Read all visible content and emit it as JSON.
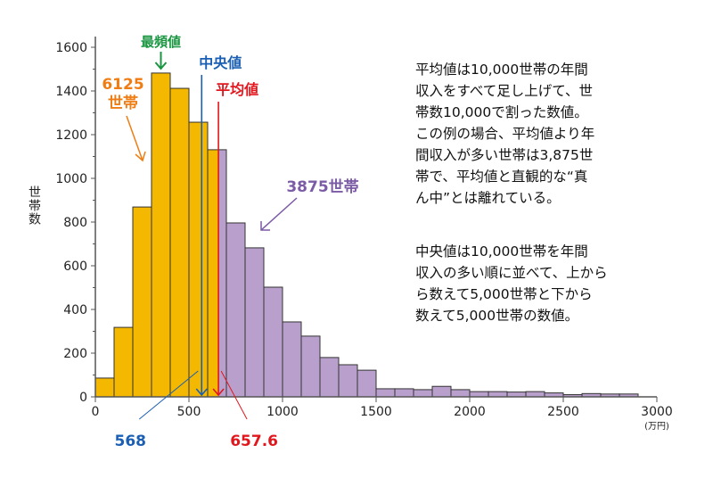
{
  "chart_data": {
    "type": "bar",
    "title": "",
    "xlabel": "(万円)",
    "ylabel": "世帯数",
    "xlim": [
      0,
      3000
    ],
    "ylim": [
      0,
      1600
    ],
    "x_ticks": [
      "0",
      "500",
      "1000",
      "1500",
      "2000",
      "2500",
      "3000"
    ],
    "y_ticks": [
      "0",
      "200",
      "400",
      "600",
      "800",
      "1000",
      "1200",
      "1400",
      "1600"
    ],
    "bin_width": 100,
    "bin_starts": [
      0,
      100,
      200,
      300,
      400,
      500,
      600,
      700,
      800,
      900,
      1000,
      1100,
      1200,
      1300,
      1400,
      1500,
      1600,
      1700,
      1800,
      1900,
      2000,
      2100,
      2200,
      2300,
      2400,
      2500,
      2600,
      2700,
      2800
    ],
    "values": [
      86,
      318,
      869,
      1482,
      1412,
      1257,
      1131,
      796,
      682,
      502,
      343,
      278,
      180,
      147,
      122,
      37,
      37,
      33,
      48,
      33,
      24,
      24,
      22,
      24,
      18,
      10,
      15,
      13,
      13
    ],
    "colors": {
      "below_mean": "#f5b800",
      "above_mean": "#b9a0cc",
      "mode": "#1a9641",
      "median": "#1a5fb4",
      "mean": "#e0181e",
      "below_label": "#ef7d14",
      "above_label": "#7b5aa6"
    },
    "annotations": {
      "mode_label": "最頻値",
      "median_label": "中央値",
      "mean_label": "平均値",
      "median_value": "568",
      "mean_value": "657.6",
      "median": 568,
      "mean": 657.6,
      "mode_bin": 350,
      "below_count": "6125",
      "below_unit": "世帯",
      "above_label": "3875世帯"
    },
    "notes": [
      "平均値は10,000世帯の年間\n収入をすべて足し上げて、世\n帯数10,000で割った数値。\nこの例の場合、平均値より年\n間収入が多い世帯は3,875世\n帯で、平均値と直観的な“真\nん中”とは離れている。",
      "中央値は10,000世帯を年間\n収入の多い順に並べて、上から\nら数えて5,000世帯と下から\n数えて5,000世帯の数値。"
    ]
  }
}
